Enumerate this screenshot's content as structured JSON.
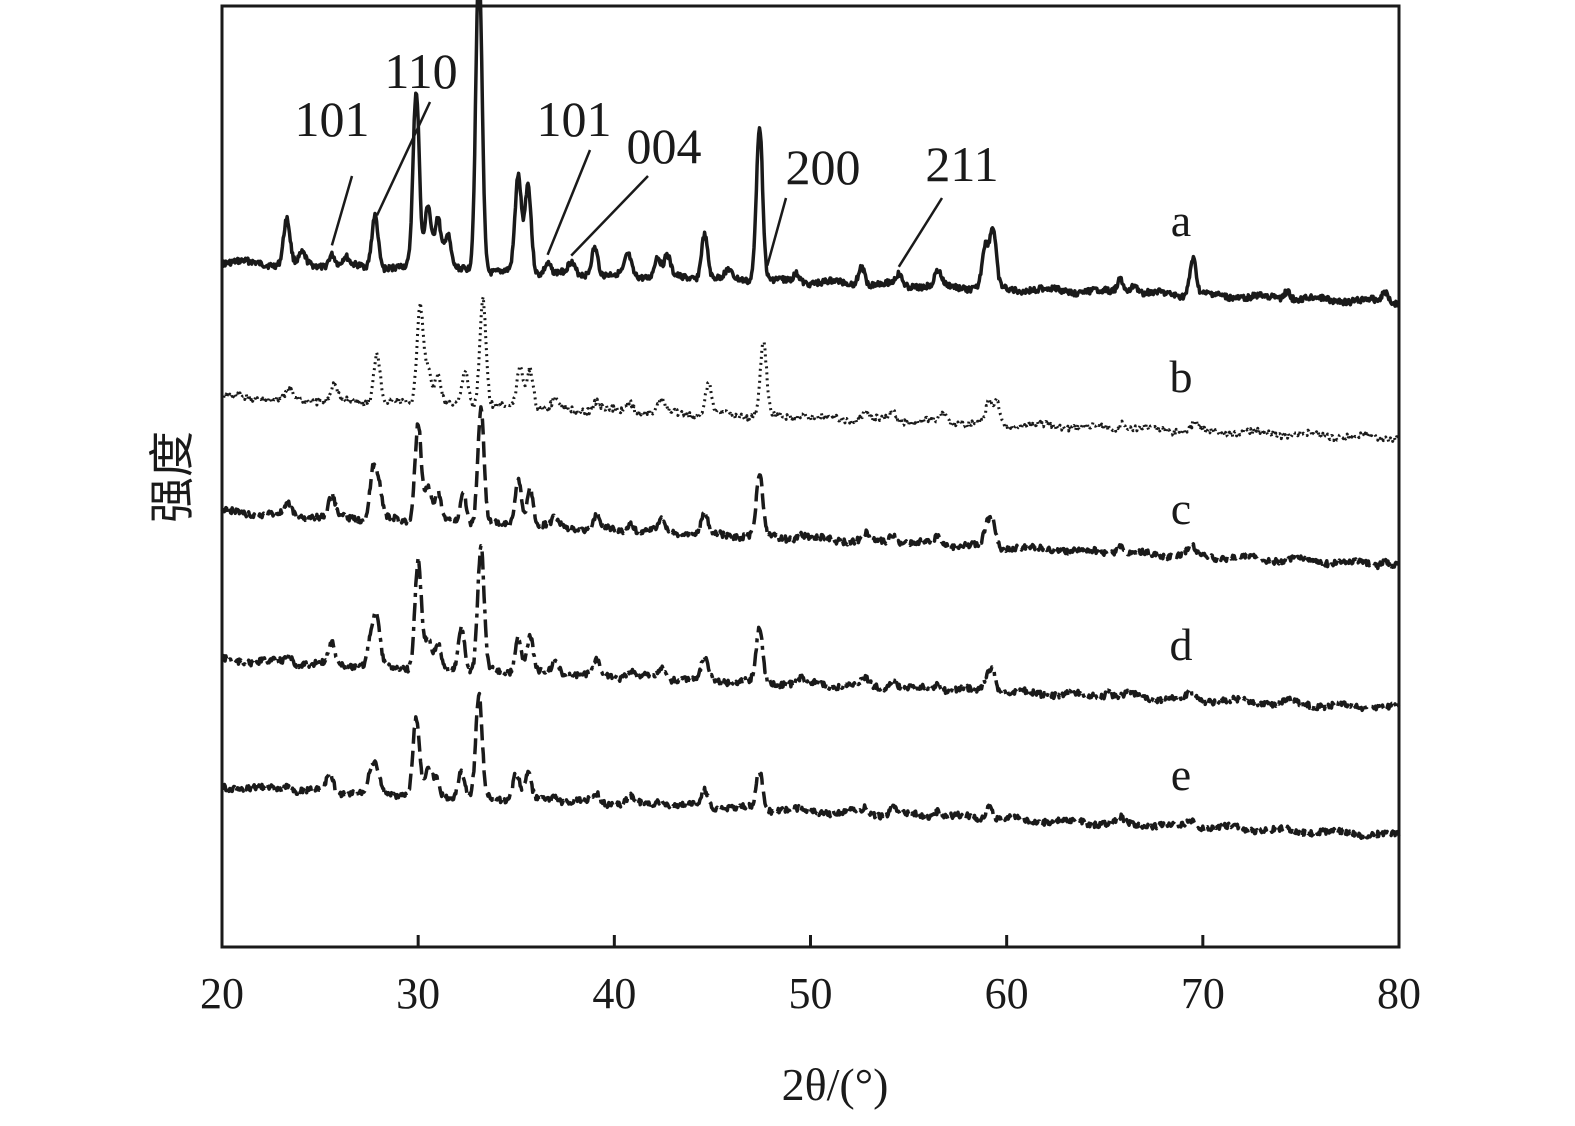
{
  "chart_data": {
    "type": "line",
    "xlabel": "2θ/(°)",
    "ylabel": "强度",
    "xlim": [
      20,
      80
    ],
    "xticks": [
      "20",
      "30",
      "40",
      "50",
      "60",
      "70",
      "80"
    ],
    "grid": false,
    "legend": "none",
    "color": "#1a1a1a",
    "series": [
      {
        "name": "a",
        "line_style": "solid",
        "peaks": [
          {
            "x": 23.3,
            "h": 0.22
          },
          {
            "x": 24.1,
            "h": 0.05
          },
          {
            "x": 25.6,
            "h": 0.06
          },
          {
            "x": 26.3,
            "h": 0.04
          },
          {
            "x": 27.8,
            "h": 0.26
          },
          {
            "x": 29.9,
            "h": 0.86
          },
          {
            "x": 30.5,
            "h": 0.32
          },
          {
            "x": 31.0,
            "h": 0.26
          },
          {
            "x": 31.5,
            "h": 0.17
          },
          {
            "x": 33.1,
            "h": 1.5
          },
          {
            "x": 35.1,
            "h": 0.46
          },
          {
            "x": 35.6,
            "h": 0.43
          },
          {
            "x": 36.6,
            "h": 0.05
          },
          {
            "x": 37.8,
            "h": 0.05
          },
          {
            "x": 39.0,
            "h": 0.14
          },
          {
            "x": 40.7,
            "h": 0.1
          },
          {
            "x": 42.2,
            "h": 0.1
          },
          {
            "x": 42.7,
            "h": 0.1
          },
          {
            "x": 44.6,
            "h": 0.22
          },
          {
            "x": 45.8,
            "h": 0.04
          },
          {
            "x": 47.4,
            "h": 0.76
          },
          {
            "x": 49.3,
            "h": 0.04
          },
          {
            "x": 52.6,
            "h": 0.09
          },
          {
            "x": 54.5,
            "h": 0.05
          },
          {
            "x": 56.5,
            "h": 0.07
          },
          {
            "x": 58.9,
            "h": 0.2
          },
          {
            "x": 59.3,
            "h": 0.28
          },
          {
            "x": 65.8,
            "h": 0.07
          },
          {
            "x": 66.5,
            "h": 0.05
          },
          {
            "x": 69.5,
            "h": 0.18
          },
          {
            "x": 74.3,
            "h": 0.04
          },
          {
            "x": 79.3,
            "h": 0.05
          }
        ]
      },
      {
        "name": "b",
        "line_style": "dotted",
        "peaks": [
          {
            "x": 23.4,
            "h": 0.05
          },
          {
            "x": 25.7,
            "h": 0.1
          },
          {
            "x": 27.9,
            "h": 0.32
          },
          {
            "x": 30.1,
            "h": 0.62
          },
          {
            "x": 30.5,
            "h": 0.22
          },
          {
            "x": 31.0,
            "h": 0.18
          },
          {
            "x": 32.4,
            "h": 0.22
          },
          {
            "x": 33.3,
            "h": 0.68
          },
          {
            "x": 35.2,
            "h": 0.26
          },
          {
            "x": 35.7,
            "h": 0.25
          },
          {
            "x": 37.0,
            "h": 0.05
          },
          {
            "x": 39.1,
            "h": 0.06
          },
          {
            "x": 40.8,
            "h": 0.06
          },
          {
            "x": 42.4,
            "h": 0.07
          },
          {
            "x": 44.8,
            "h": 0.18
          },
          {
            "x": 47.6,
            "h": 0.45
          },
          {
            "x": 49.6,
            "h": 0.03
          },
          {
            "x": 52.8,
            "h": 0.05
          },
          {
            "x": 54.2,
            "h": 0.06
          },
          {
            "x": 56.8,
            "h": 0.05
          },
          {
            "x": 59.1,
            "h": 0.12
          },
          {
            "x": 59.5,
            "h": 0.14
          },
          {
            "x": 65.9,
            "h": 0.04
          },
          {
            "x": 69.6,
            "h": 0.05
          }
        ]
      },
      {
        "name": "c",
        "line_style": "dashed",
        "peaks": [
          {
            "x": 23.4,
            "h": 0.06
          },
          {
            "x": 25.6,
            "h": 0.13
          },
          {
            "x": 27.7,
            "h": 0.3
          },
          {
            "x": 28.0,
            "h": 0.2
          },
          {
            "x": 30.0,
            "h": 0.62
          },
          {
            "x": 30.5,
            "h": 0.22
          },
          {
            "x": 31.0,
            "h": 0.17
          },
          {
            "x": 32.3,
            "h": 0.2
          },
          {
            "x": 33.2,
            "h": 0.72
          },
          {
            "x": 35.1,
            "h": 0.3
          },
          {
            "x": 35.7,
            "h": 0.25
          },
          {
            "x": 37.0,
            "h": 0.06
          },
          {
            "x": 39.1,
            "h": 0.08
          },
          {
            "x": 40.8,
            "h": 0.05
          },
          {
            "x": 42.4,
            "h": 0.07
          },
          {
            "x": 44.6,
            "h": 0.12
          },
          {
            "x": 47.4,
            "h": 0.38
          },
          {
            "x": 49.5,
            "h": 0.03
          },
          {
            "x": 52.8,
            "h": 0.04
          },
          {
            "x": 54.2,
            "h": 0.06
          },
          {
            "x": 56.5,
            "h": 0.06
          },
          {
            "x": 59.0,
            "h": 0.12
          },
          {
            "x": 59.3,
            "h": 0.15
          },
          {
            "x": 65.8,
            "h": 0.04
          },
          {
            "x": 69.4,
            "h": 0.06
          },
          {
            "x": 79.3,
            "h": 0.03
          }
        ]
      },
      {
        "name": "d",
        "line_style": "dash-dot",
        "peaks": [
          {
            "x": 23.4,
            "h": 0.05
          },
          {
            "x": 25.6,
            "h": 0.14
          },
          {
            "x": 27.6,
            "h": 0.2
          },
          {
            "x": 27.9,
            "h": 0.32
          },
          {
            "x": 30.0,
            "h": 0.75
          },
          {
            "x": 30.5,
            "h": 0.2
          },
          {
            "x": 31.0,
            "h": 0.16
          },
          {
            "x": 32.2,
            "h": 0.3
          },
          {
            "x": 33.2,
            "h": 0.85
          },
          {
            "x": 35.1,
            "h": 0.26
          },
          {
            "x": 35.7,
            "h": 0.25
          },
          {
            "x": 37.0,
            "h": 0.1
          },
          {
            "x": 39.1,
            "h": 0.1
          },
          {
            "x": 40.8,
            "h": 0.05
          },
          {
            "x": 42.4,
            "h": 0.07
          },
          {
            "x": 44.6,
            "h": 0.14
          },
          {
            "x": 47.4,
            "h": 0.36
          },
          {
            "x": 49.5,
            "h": 0.03
          },
          {
            "x": 52.8,
            "h": 0.05
          },
          {
            "x": 54.2,
            "h": 0.06
          },
          {
            "x": 56.5,
            "h": 0.05
          },
          {
            "x": 59.0,
            "h": 0.1
          },
          {
            "x": 59.3,
            "h": 0.14
          },
          {
            "x": 65.2,
            "h": 0.04
          },
          {
            "x": 66.3,
            "h": 0.03
          },
          {
            "x": 69.4,
            "h": 0.05
          },
          {
            "x": 74.3,
            "h": 0.02
          }
        ]
      },
      {
        "name": "e",
        "line_style": "dashed",
        "peaks": [
          {
            "x": 23.4,
            "h": 0.04
          },
          {
            "x": 25.5,
            "h": 0.14
          },
          {
            "x": 27.6,
            "h": 0.16
          },
          {
            "x": 27.9,
            "h": 0.16
          },
          {
            "x": 29.9,
            "h": 0.56
          },
          {
            "x": 30.5,
            "h": 0.17
          },
          {
            "x": 30.9,
            "h": 0.13
          },
          {
            "x": 32.2,
            "h": 0.2
          },
          {
            "x": 33.1,
            "h": 0.75
          },
          {
            "x": 35.0,
            "h": 0.2
          },
          {
            "x": 35.6,
            "h": 0.18
          },
          {
            "x": 37.0,
            "h": 0.05
          },
          {
            "x": 39.1,
            "h": 0.06
          },
          {
            "x": 40.8,
            "h": 0.05
          },
          {
            "x": 42.4,
            "h": 0.05
          },
          {
            "x": 44.6,
            "h": 0.12
          },
          {
            "x": 47.4,
            "h": 0.28
          },
          {
            "x": 52.8,
            "h": 0.04
          },
          {
            "x": 54.2,
            "h": 0.05
          },
          {
            "x": 56.5,
            "h": 0.05
          },
          {
            "x": 59.1,
            "h": 0.1
          },
          {
            "x": 65.8,
            "h": 0.04
          },
          {
            "x": 69.4,
            "h": 0.05
          }
        ]
      }
    ],
    "annotations": [
      {
        "text": "101",
        "series": "a",
        "x": 25.6
      },
      {
        "text": "110",
        "series": "a",
        "x": 27.9
      },
      {
        "text": "101",
        "series": "a",
        "x": 36.6
      },
      {
        "text": "004",
        "series": "a",
        "x": 37.8
      },
      {
        "text": "200",
        "series": "a",
        "x": 47.8
      },
      {
        "text": "211",
        "series": "a",
        "x": 54.5
      }
    ]
  }
}
